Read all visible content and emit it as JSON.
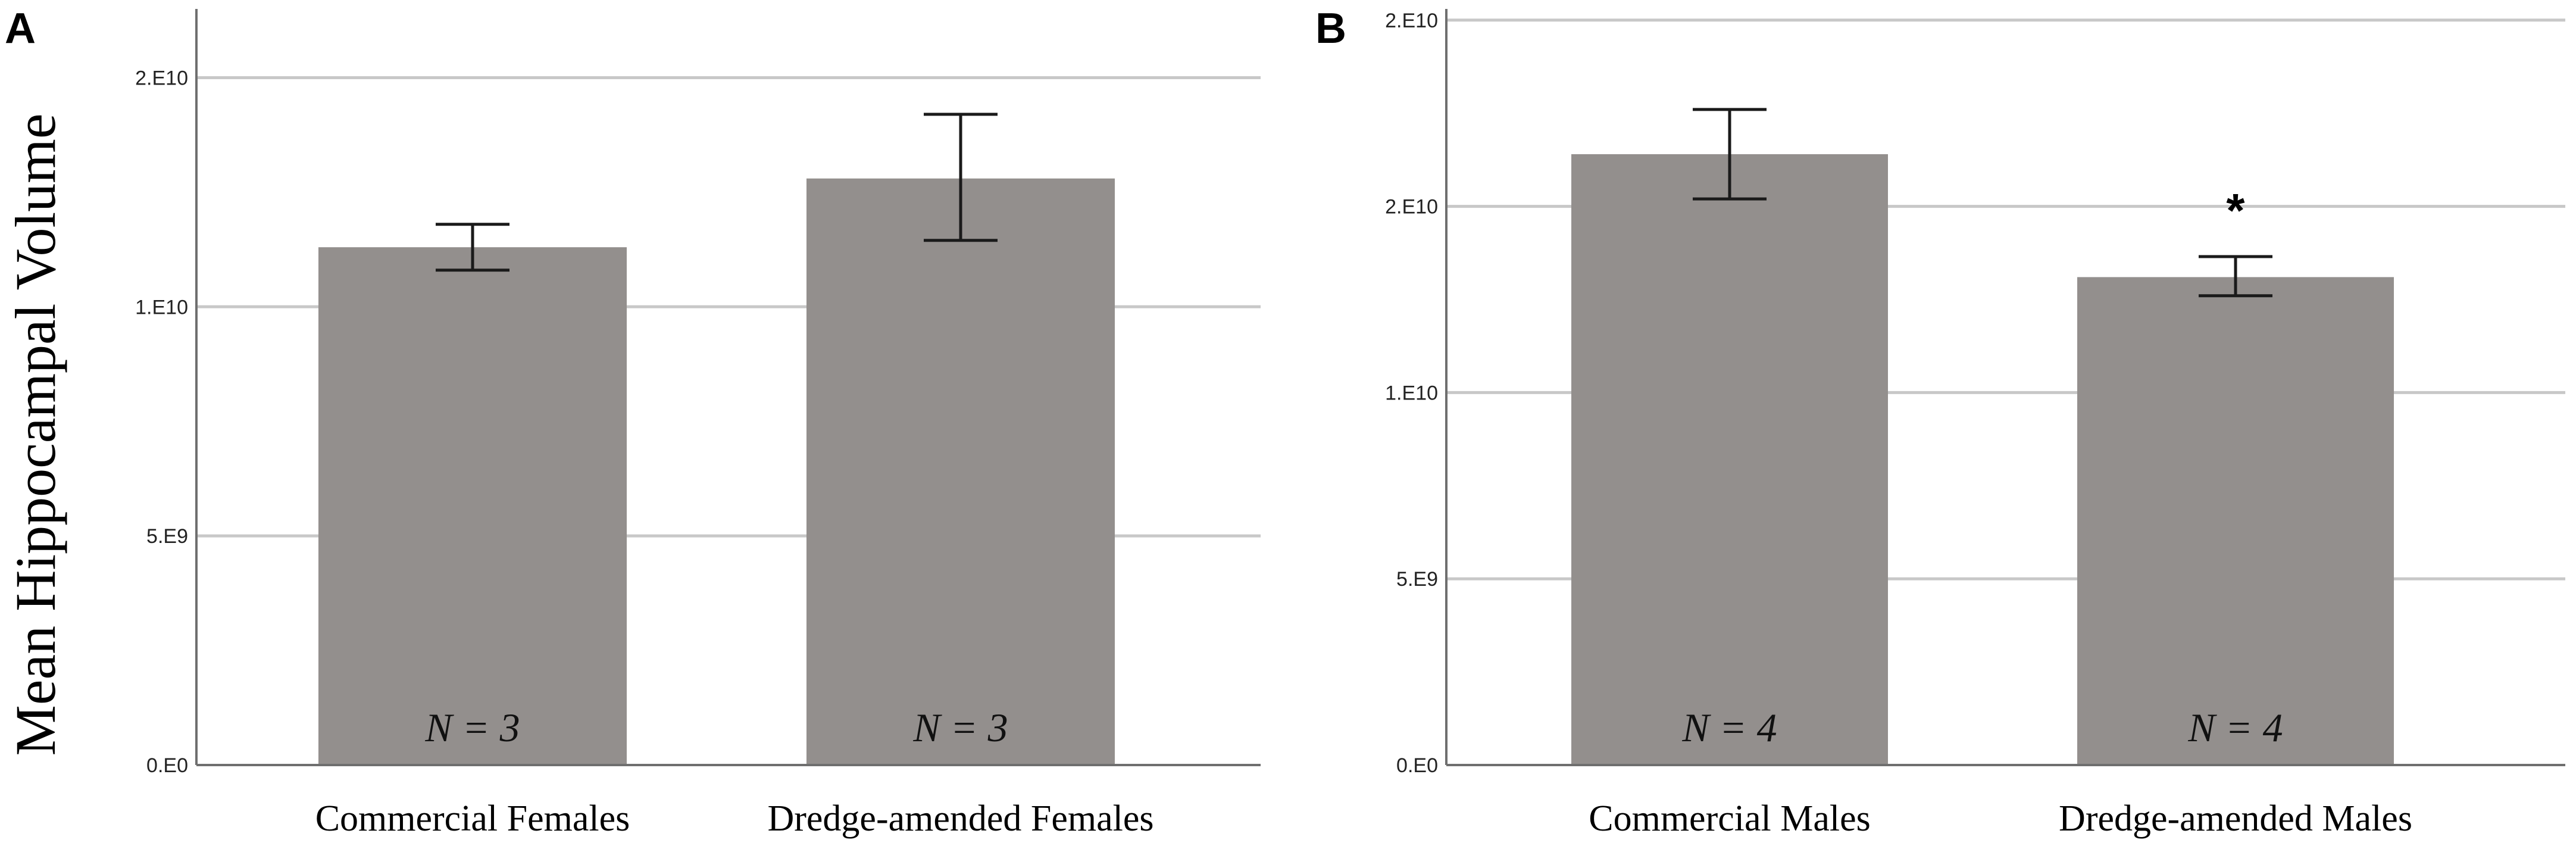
{
  "ylabel": "Mean Hippocampal Volume",
  "colors": {
    "bar": "#938f8d",
    "grid": "#c8c8c8",
    "axis": "#6f6f6f",
    "error": "#1a1a1a"
  },
  "chart_data": [
    {
      "type": "bar",
      "panel": "A",
      "ylim": [
        0,
        16500000000
      ],
      "yticks": [
        {
          "value": 0,
          "label": "0.E0"
        },
        {
          "value": 5000000000,
          "label": "5.E9"
        },
        {
          "value": 10000000000,
          "label": "1.E10"
        },
        {
          "value": 15000000000,
          "label": "2.E10"
        }
      ],
      "categories": [
        "Commercial Females",
        "Dredge-amended Females"
      ],
      "values": [
        11300000000,
        12800000000
      ],
      "error_low": [
        10800000000,
        11450000000
      ],
      "error_high": [
        11800000000,
        14200000000
      ],
      "n_labels": [
        "N = 3",
        "N = 3"
      ],
      "annotations": [],
      "grid": true
    },
    {
      "type": "bar",
      "panel": "B",
      "ylim": [
        0,
        20300000000
      ],
      "yticks": [
        {
          "value": 0,
          "label": "0.E0"
        },
        {
          "value": 5000000000,
          "label": "5.E9"
        },
        {
          "value": 10000000000,
          "label": "1.E10"
        },
        {
          "value": 15000000000,
          "label": "2.E10"
        },
        {
          "value": 20000000000,
          "label": "2.E10"
        }
      ],
      "categories": [
        "Commercial Males",
        "Dredge-amended Males"
      ],
      "values": [
        16400000000,
        13100000000
      ],
      "error_low": [
        15200000000,
        12600000000
      ],
      "error_high": [
        17600000000,
        13650000000
      ],
      "n_labels": [
        "N = 4",
        "N = 4"
      ],
      "annotations": [
        "",
        "*"
      ],
      "grid": true
    }
  ]
}
